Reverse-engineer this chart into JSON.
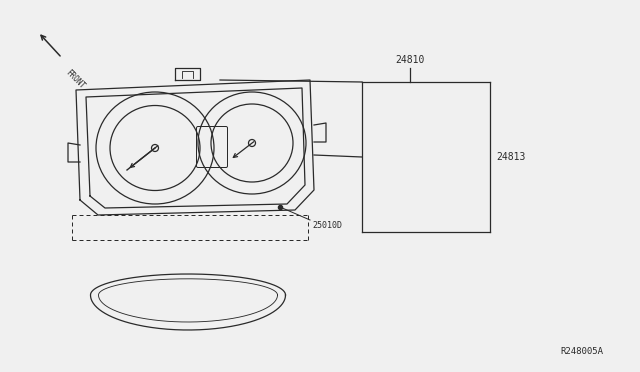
{
  "bg_color": "#f0f0f0",
  "line_color": "#2a2a2a",
  "label_24810": "24810",
  "label_24813": "24813",
  "label_25010d": "25010D",
  "label_r248005a": "R248005A",
  "label_front": "FRONT",
  "fig_width": 6.4,
  "fig_height": 3.72,
  "dpi": 100
}
